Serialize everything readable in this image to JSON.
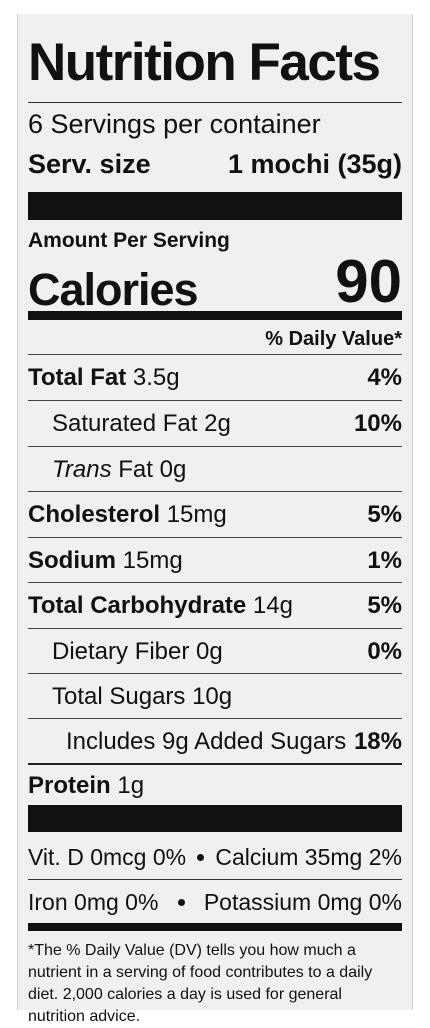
{
  "label": {
    "title": "Nutrition Facts",
    "servings_per_container": "6 Servings per container",
    "serving_size_label": "Serv. size",
    "serving_size_value": "1 mochi (35g)",
    "amount_per_serving": "Amount Per Serving",
    "calories_label": "Calories",
    "calories_value": "90",
    "daily_value_header": "% Daily Value*"
  },
  "nutrients": [
    {
      "name": "Total Fat",
      "amount": "3.5g",
      "dv": "4%"
    },
    {
      "name": "Saturated Fat",
      "amount": "2g",
      "dv": "10%"
    },
    {
      "name_italic": "Trans",
      "name": "Fat",
      "amount": "0g",
      "dv": ""
    },
    {
      "name": "Cholesterol",
      "amount": "15mg",
      "dv": "5%"
    },
    {
      "name": "Sodium",
      "amount": "15mg",
      "dv": "1%"
    },
    {
      "name": "Total Carbohydrate",
      "amount": "14g",
      "dv": "5%"
    },
    {
      "name": "Dietary Fiber",
      "amount": "0g",
      "dv": "0%"
    },
    {
      "name": "Total Sugars",
      "amount": "10g",
      "dv": ""
    },
    {
      "name": "Includes 9g Added Sugars",
      "amount": "",
      "dv": "18%"
    },
    {
      "name": "Protein",
      "amount": "1g",
      "dv": ""
    }
  ],
  "vitamins": {
    "vitd": "Vit. D 0mcg 0%",
    "calcium": "Calcium 35mg 2%",
    "iron": "Iron 0mg 0%",
    "potassium": "Potassium 0mg 0%"
  },
  "footnote": "*The % Daily Value (DV) tells you how much a nutrient in a serving of food contributes to a daily diet. 2,000 calories a day is used for general nutrition advice."
}
